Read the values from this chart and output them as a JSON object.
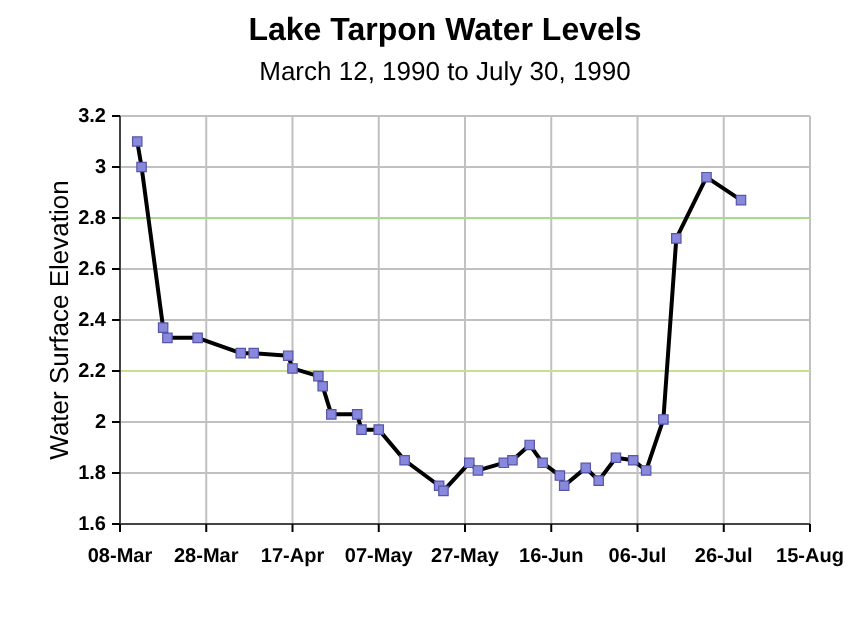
{
  "chart_data": {
    "type": "line",
    "title": "Lake Tarpon Water Levels",
    "subtitle": "March 12, 1990 to July 30, 1990",
    "ylabel": "Water Surface Elevation",
    "x": [
      "1990-03-12",
      "1990-03-13",
      "1990-03-18",
      "1990-03-19",
      "1990-03-26",
      "1990-04-05",
      "1990-04-08",
      "1990-04-16",
      "1990-04-17",
      "1990-04-23",
      "1990-04-24",
      "1990-04-26",
      "1990-05-02",
      "1990-05-03",
      "1990-05-07",
      "1990-05-13",
      "1990-05-21",
      "1990-05-22",
      "1990-05-28",
      "1990-05-30",
      "1990-06-05",
      "1990-06-07",
      "1990-06-11",
      "1990-06-14",
      "1990-06-18",
      "1990-06-19",
      "1990-06-24",
      "1990-06-27",
      "1990-07-01",
      "1990-07-05",
      "1990-07-08",
      "1990-07-12",
      "1990-07-15",
      "1990-07-22",
      "1990-07-30"
    ],
    "series": [
      {
        "color": "#000000",
        "values": [
          3.1,
          3.0,
          2.37,
          2.33,
          2.33,
          2.27,
          2.27,
          2.26,
          2.21,
          2.18,
          2.14,
          2.03,
          2.03,
          1.97,
          1.97,
          1.85,
          1.75,
          1.73,
          1.84,
          1.81,
          1.84,
          1.85,
          1.91,
          1.84,
          1.79,
          1.75,
          1.82,
          1.77,
          1.86,
          1.85,
          1.81,
          2.01,
          2.72,
          2.96,
          2.87
        ]
      }
    ],
    "marker": "square",
    "grid": true,
    "xlim": [
      "1990-03-08",
      "1990-08-15"
    ],
    "xticks": [
      {
        "value": "1990-03-08",
        "label": "08-Mar"
      },
      {
        "value": "1990-03-28",
        "label": "28-Mar"
      },
      {
        "value": "1990-04-17",
        "label": "17-Apr"
      },
      {
        "value": "1990-05-07",
        "label": "07-May"
      },
      {
        "value": "1990-05-27",
        "label": "27-May"
      },
      {
        "value": "1990-06-16",
        "label": "16-Jun"
      },
      {
        "value": "1990-07-06",
        "label": "06-Jul"
      },
      {
        "value": "1990-07-26",
        "label": "26-Jul"
      },
      {
        "value": "1990-08-15",
        "label": "15-Aug"
      }
    ],
    "ylim": [
      1.6,
      3.2
    ],
    "yticks": [
      1.6,
      1.8,
      {
        "value": 2,
        "label": "2"
      },
      2.2,
      2.4,
      2.6,
      2.8,
      {
        "value": 3,
        "label": "3"
      },
      3.2
    ],
    "ref_lines": [
      {
        "axis": "y",
        "value": 2.8,
        "color": "#a6dc8c"
      },
      {
        "axis": "y",
        "value": 2.2,
        "color": "#c8e08c"
      }
    ]
  }
}
